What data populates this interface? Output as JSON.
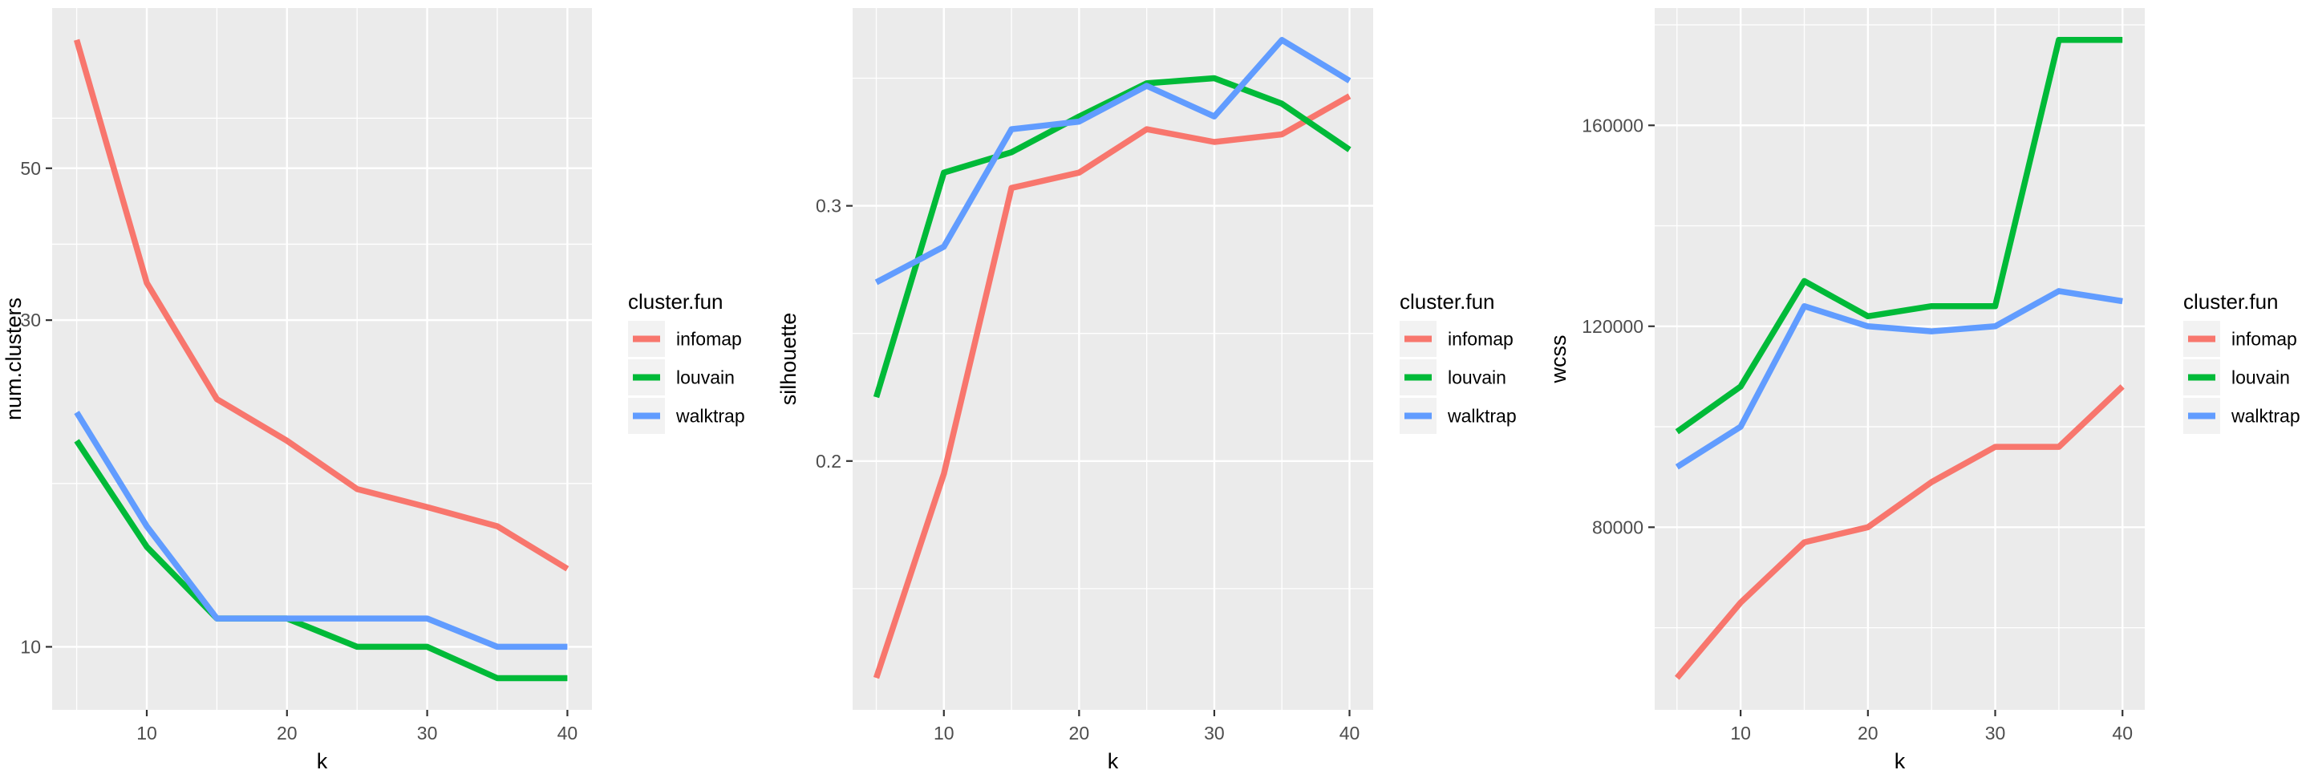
{
  "figure": {
    "background": "#FFFFFF",
    "panel_background": "#EBEBEB",
    "grid_color": "#FFFFFF",
    "tick_mark_color": "#333333",
    "axis_text_color": "#4D4D4D",
    "axis_title_color": "#000000",
    "legend_key_background": "#F2F2F2",
    "legend_title": "cluster.fun",
    "series_names": [
      "infomap",
      "louvain",
      "walktrap"
    ],
    "series_colors": [
      "#F8766D",
      "#00BA38",
      "#619CFF"
    ]
  },
  "chart_data": [
    {
      "type": "line",
      "title": "",
      "ylabel": "num.clusters",
      "xlabel": "k",
      "yscale": "log10",
      "xlim": [
        3.25,
        41.75
      ],
      "ylim": [
        8.09,
        85.7
      ],
      "x": [
        5,
        10,
        15,
        20,
        25,
        30,
        35,
        40
      ],
      "x_ticks": [
        10,
        20,
        30,
        40
      ],
      "x_tick_labels": [
        "10",
        "20",
        "30",
        "40"
      ],
      "x_minor_ticks": [
        5,
        15,
        25,
        35
      ],
      "y_ticks": [
        10,
        30,
        50
      ],
      "y_tick_labels": [
        "10",
        "30",
        "50"
      ],
      "y_minor_ticks": [
        17.32,
        38.73,
        59.16
      ],
      "grid": true,
      "legend": {
        "title": "cluster.fun",
        "position": "right"
      },
      "series": [
        {
          "name": "infomap",
          "color": "#F8766D",
          "values": [
            77,
            34,
            23,
            20,
            17,
            16,
            15,
            13
          ]
        },
        {
          "name": "louvain",
          "color": "#00BA38",
          "values": [
            20,
            14,
            11,
            11,
            10,
            10,
            9,
            9
          ]
        },
        {
          "name": "walktrap",
          "color": "#619CFF",
          "values": [
            22,
            15,
            11,
            11,
            11,
            11,
            10,
            10
          ]
        }
      ]
    },
    {
      "type": "line",
      "title": "",
      "ylabel": "silhouette",
      "xlabel": "k",
      "yscale": "linear",
      "xlim": [
        3.25,
        41.75
      ],
      "ylim": [
        0.1025,
        0.3775
      ],
      "x": [
        5,
        10,
        15,
        20,
        25,
        30,
        35,
        40
      ],
      "x_ticks": [
        10,
        20,
        30,
        40
      ],
      "x_tick_labels": [
        "10",
        "20",
        "30",
        "40"
      ],
      "x_minor_ticks": [
        5,
        15,
        25,
        35
      ],
      "y_ticks": [
        0.2,
        0.3
      ],
      "y_tick_labels": [
        "0.2",
        "0.3"
      ],
      "y_minor_ticks": [
        0.15,
        0.25,
        0.35
      ],
      "grid": true,
      "legend": {
        "title": "cluster.fun",
        "position": "right"
      },
      "series": [
        {
          "name": "infomap",
          "color": "#F8766D",
          "values": [
            0.115,
            0.195,
            0.307,
            0.313,
            0.33,
            0.325,
            0.328,
            0.343
          ]
        },
        {
          "name": "louvain",
          "color": "#00BA38",
          "values": [
            0.225,
            0.313,
            0.321,
            0.335,
            0.348,
            0.35,
            0.34,
            0.322
          ]
        },
        {
          "name": "walktrap",
          "color": "#619CFF",
          "values": [
            0.27,
            0.284,
            0.33,
            0.333,
            0.347,
            0.335,
            0.365,
            0.349
          ]
        }
      ]
    },
    {
      "type": "line",
      "title": "",
      "ylabel": "wcss",
      "xlabel": "k",
      "yscale": "linear",
      "xlim": [
        3.25,
        41.75
      ],
      "ylim": [
        43650,
        183350
      ],
      "x": [
        5,
        10,
        15,
        20,
        25,
        30,
        35,
        40
      ],
      "x_ticks": [
        10,
        20,
        30,
        40
      ],
      "x_tick_labels": [
        "10",
        "20",
        "30",
        "40"
      ],
      "x_minor_ticks": [
        5,
        15,
        25,
        35
      ],
      "y_ticks": [
        80000,
        120000,
        160000
      ],
      "y_tick_labels": [
        "80000",
        "120000",
        "160000"
      ],
      "y_minor_ticks": [
        60000,
        100000,
        140000,
        180000
      ],
      "grid": true,
      "legend": {
        "title": "cluster.fun",
        "position": "right"
      },
      "series": [
        {
          "name": "infomap",
          "color": "#F8766D",
          "values": [
            50000,
            65000,
            77000,
            80000,
            89000,
            96000,
            96000,
            108000
          ]
        },
        {
          "name": "louvain",
          "color": "#00BA38",
          "values": [
            99000,
            108000,
            129000,
            122000,
            124000,
            124000,
            177000,
            177000
          ]
        },
        {
          "name": "walktrap",
          "color": "#619CFF",
          "values": [
            92000,
            100000,
            124000,
            120000,
            119000,
            120000,
            127000,
            125000
          ]
        }
      ]
    }
  ]
}
